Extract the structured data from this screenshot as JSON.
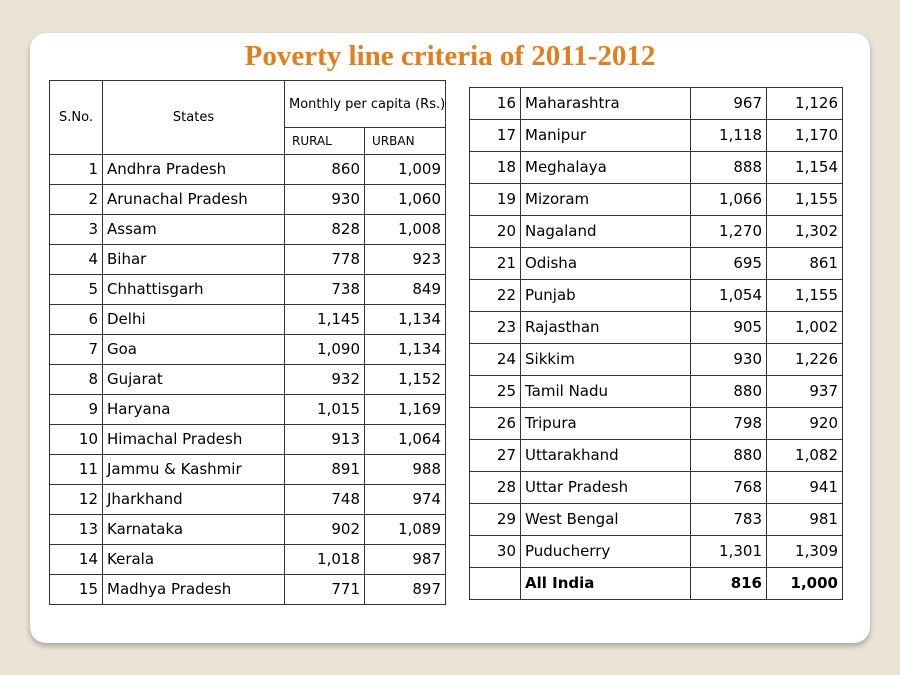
{
  "title": "Poverty line criteria of 2011-2012",
  "table_header": {
    "sno": "S.No.",
    "states": "States",
    "group": "Monthly per capita (Rs.)",
    "rural": "RURAL",
    "urban": "URBAN"
  },
  "left_rows": [
    {
      "sno": "1",
      "state": "Andhra Pradesh",
      "rural": "860",
      "urban": "1,009"
    },
    {
      "sno": "2",
      "state": "Arunachal Pradesh",
      "rural": "930",
      "urban": "1,060"
    },
    {
      "sno": "3",
      "state": "Assam",
      "rural": "828",
      "urban": "1,008"
    },
    {
      "sno": "4",
      "state": "Bihar",
      "rural": "778",
      "urban": "923"
    },
    {
      "sno": "5",
      "state": "Chhattisgarh",
      "rural": "738",
      "urban": "849"
    },
    {
      "sno": "6",
      "state": "Delhi",
      "rural": "1,145",
      "urban": "1,134"
    },
    {
      "sno": "7",
      "state": "Goa",
      "rural": "1,090",
      "urban": "1,134"
    },
    {
      "sno": "8",
      "state": "Gujarat",
      "rural": "932",
      "urban": "1,152"
    },
    {
      "sno": "9",
      "state": "Haryana",
      "rural": "1,015",
      "urban": "1,169"
    },
    {
      "sno": "10",
      "state": "Himachal Pradesh",
      "rural": "913",
      "urban": "1,064"
    },
    {
      "sno": "11",
      "state": "Jammu & Kashmir",
      "rural": "891",
      "urban": "988"
    },
    {
      "sno": "12",
      "state": "Jharkhand",
      "rural": "748",
      "urban": "974"
    },
    {
      "sno": "13",
      "state": "Karnataka",
      "rural": "902",
      "urban": "1,089"
    },
    {
      "sno": "14",
      "state": "Kerala",
      "rural": "1,018",
      "urban": "987"
    },
    {
      "sno": "15",
      "state": "Madhya Pradesh",
      "rural": "771",
      "urban": "897"
    }
  ],
  "right_rows": [
    {
      "sno": "16",
      "state": "Maharashtra",
      "rural": "967",
      "urban": "1,126"
    },
    {
      "sno": "17",
      "state": "Manipur",
      "rural": "1,118",
      "urban": "1,170"
    },
    {
      "sno": "18",
      "state": "Meghalaya",
      "rural": "888",
      "urban": "1,154"
    },
    {
      "sno": "19",
      "state": "Mizoram",
      "rural": "1,066",
      "urban": "1,155"
    },
    {
      "sno": "20",
      "state": "Nagaland",
      "rural": "1,270",
      "urban": "1,302"
    },
    {
      "sno": "21",
      "state": "Odisha",
      "rural": "695",
      "urban": "861"
    },
    {
      "sno": "22",
      "state": "Punjab",
      "rural": "1,054",
      "urban": "1,155"
    },
    {
      "sno": "23",
      "state": "Rajasthan",
      "rural": "905",
      "urban": "1,002"
    },
    {
      "sno": "24",
      "state": "Sikkim",
      "rural": "930",
      "urban": "1,226"
    },
    {
      "sno": "25",
      "state": "Tamil Nadu",
      "rural": "880",
      "urban": "937"
    },
    {
      "sno": "26",
      "state": "Tripura",
      "rural": "798",
      "urban": "920"
    },
    {
      "sno": "27",
      "state": "Uttarakhand",
      "rural": "880",
      "urban": "1,082"
    },
    {
      "sno": "28",
      "state": "Uttar Pradesh",
      "rural": "768",
      "urban": "941"
    },
    {
      "sno": "29",
      "state": "West Bengal",
      "rural": "783",
      "urban": "981"
    },
    {
      "sno": "30",
      "state": "Puducherry",
      "rural": "1,301",
      "urban": "1,309"
    }
  ],
  "total_row": {
    "sno": "",
    "state": "All India",
    "rural": "816",
    "urban": "1,000"
  },
  "colors": {
    "title": "#e47d1c",
    "background": "#ebe4d6",
    "card": "#ffffff"
  }
}
